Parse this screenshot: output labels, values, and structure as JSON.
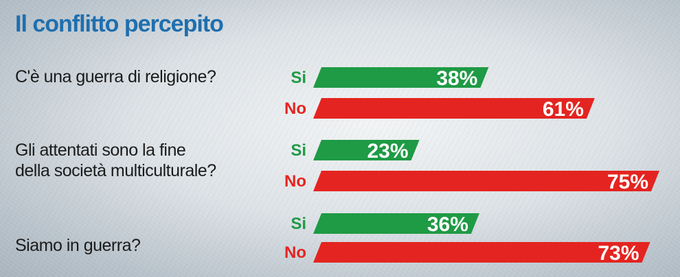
{
  "chart_data": {
    "type": "bar",
    "title": "Il conflitto percepito",
    "colors": {
      "Si": "#1f9a45",
      "No": "#e42420",
      "title": "#1f6fae"
    },
    "xlim": [
      0,
      100
    ],
    "groups": [
      {
        "question": "C'è una guerra di religione?",
        "bars": [
          {
            "label": "Si",
            "value": 38,
            "text": "38%"
          },
          {
            "label": "No",
            "value": 61,
            "text": "61%"
          }
        ]
      },
      {
        "question": "Gli attentati sono la fine della società multiculturale?",
        "question_lines": [
          "Gli attentati sono la fine",
          "della società multiculturale?"
        ],
        "bars": [
          {
            "label": "Si",
            "value": 23,
            "text": "23%"
          },
          {
            "label": "No",
            "value": 75,
            "text": "75%"
          }
        ]
      },
      {
        "question": "Siamo in guerra?",
        "bars": [
          {
            "label": "Si",
            "value": 36,
            "text": "36%"
          },
          {
            "label": "No",
            "value": 73,
            "text": "73%"
          }
        ]
      }
    ]
  }
}
